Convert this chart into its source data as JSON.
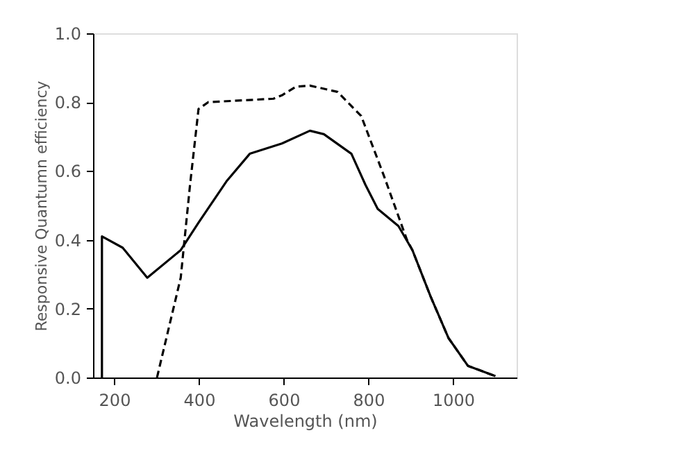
{
  "chart_data": {
    "type": "line",
    "xlabel": "Wavelength (nm)",
    "ylabel": "Responsive Quantumn efficiency",
    "xlim": [
      150,
      1150
    ],
    "xticks": [
      200,
      400,
      600,
      800,
      1000
    ],
    "ylim": [
      0,
      1
    ],
    "yticks": [
      {
        "value": 0,
        "label": "0.0"
      },
      {
        "value": 0.2,
        "label": "0.2"
      },
      {
        "value": 0.4,
        "label": "0.4"
      },
      {
        "value": 0.6,
        "label": "0.6"
      },
      {
        "value": 0.8,
        "label": "0.8"
      },
      {
        "value": 1,
        "label": "1.0"
      }
    ],
    "grid": false,
    "series": [
      {
        "color": "#000000",
        "line_style": "solid",
        "x": [
          171,
          171,
          220,
          278,
          357,
          399,
          465,
          520,
          596,
          662,
          695,
          760,
          793,
          822,
          871,
          904,
          947,
          989,
          1035,
          1100
        ],
        "values": [
          0,
          0.41,
          0.377,
          0.29,
          0.37,
          0.45,
          0.57,
          0.65,
          0.68,
          0.717,
          0.707,
          0.65,
          0.56,
          0.49,
          0.44,
          0.37,
          0.235,
          0.115,
          0.034,
          0.004
        ]
      },
      {
        "color": "#000000",
        "line_style": "dashed",
        "x": [
          301,
          357,
          379,
          399,
          422,
          576,
          596,
          629,
          662,
          727,
          783,
          837,
          891,
          904,
          947,
          989,
          1035,
          1100
        ],
        "values": [
          0,
          0.29,
          0.56,
          0.78,
          0.8,
          0.81,
          0.82,
          0.845,
          0.848,
          0.83,
          0.76,
          0.585,
          0.4,
          0.37,
          0.235,
          0.115,
          0.034,
          0.004
        ]
      }
    ]
  }
}
